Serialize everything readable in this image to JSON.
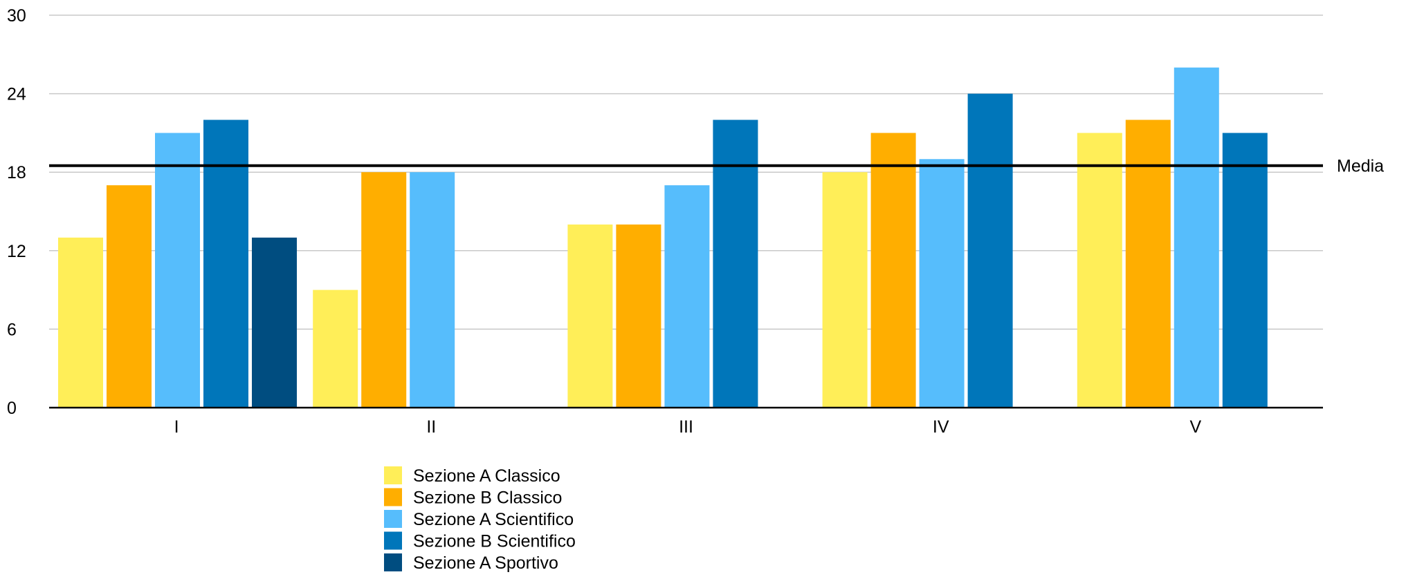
{
  "chart_data": {
    "type": "bar",
    "categories": [
      "I",
      "II",
      "III",
      "IV",
      "V"
    ],
    "ylim": [
      0,
      30
    ],
    "yticks": [
      0,
      6,
      12,
      18,
      24,
      30
    ],
    "grid": true,
    "legend_position": "bottom-center",
    "series": [
      {
        "name": "Sezione A Classico",
        "color": "#FFEE58",
        "values": [
          13,
          9,
          14,
          18,
          21
        ]
      },
      {
        "name": "Sezione B Classico",
        "color": "#FFAE00",
        "values": [
          17,
          18,
          14,
          21,
          22
        ]
      },
      {
        "name": "Sezione A Scientifico",
        "color": "#56BDFC",
        "values": [
          21,
          18,
          17,
          19,
          26
        ]
      },
      {
        "name": "Sezione B Scientifico",
        "color": "#0076BA",
        "values": [
          22,
          null,
          22,
          24,
          21
        ]
      },
      {
        "name": "Sezione A Sportivo",
        "color": "#004D80",
        "values": [
          13,
          null,
          null,
          null,
          null
        ]
      }
    ],
    "reference_line": {
      "label": "Media",
      "value": 18.5,
      "color": "#000000"
    }
  }
}
